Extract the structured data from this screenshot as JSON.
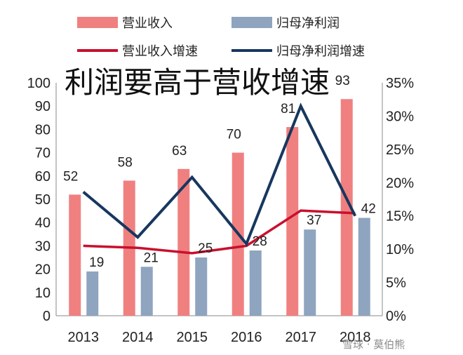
{
  "chart_data": {
    "type": "bar",
    "title": "",
    "overlay_text": "利润要高于营收增速",
    "categories": [
      "2013",
      "2014",
      "2015",
      "2016",
      "2017",
      "2018"
    ],
    "series": [
      {
        "name": "营业收入",
        "kind": "bar",
        "axis": "left",
        "color": "#f08080",
        "values": [
          52,
          58,
          63,
          70,
          81,
          93
        ],
        "labels": [
          "52",
          "58",
          "63",
          "70",
          "81",
          "93"
        ]
      },
      {
        "name": "归母净利润",
        "kind": "bar",
        "axis": "left",
        "color": "#8ea4bf",
        "values": [
          19,
          21,
          25,
          28,
          37,
          42
        ],
        "labels": [
          "19",
          "21",
          "25",
          "28",
          "37",
          "42"
        ]
      },
      {
        "name": "营业收入增速",
        "kind": "line",
        "axis": "right",
        "color": "#c8102e",
        "values": [
          10.5,
          10.2,
          9.4,
          10.5,
          15.8,
          15.4
        ]
      },
      {
        "name": "归母净利润增速",
        "kind": "line",
        "axis": "right",
        "color": "#17375e",
        "values": [
          18.6,
          11.8,
          20.8,
          10.8,
          31.5,
          15.0
        ]
      }
    ],
    "y_left": {
      "min": 0,
      "max": 100,
      "ticks": [
        "0",
        "10",
        "20",
        "30",
        "40",
        "50",
        "60",
        "70",
        "80",
        "90",
        "100"
      ]
    },
    "y_right": {
      "min": 0,
      "max": 35,
      "ticks": [
        "0%",
        "5%",
        "10%",
        "15%",
        "20%",
        "25%",
        "30%",
        "35%"
      ]
    },
    "grid": false,
    "legend_position": "top"
  },
  "watermark": "雪球 · 莫伯熊"
}
